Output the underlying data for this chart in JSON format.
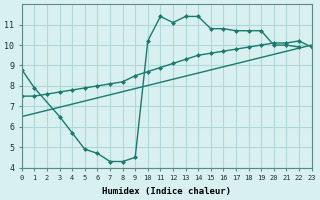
{
  "xlabel": "Humidex (Indice chaleur)",
  "bg_color": "#d9f0f0",
  "grid_color": "#b0d8d8",
  "line_color": "#1a7a6e",
  "xlim": [
    0,
    23
  ],
  "ylim": [
    4,
    12
  ],
  "xticks": [
    0,
    1,
    2,
    3,
    4,
    5,
    6,
    7,
    8,
    9,
    10,
    11,
    12,
    13,
    14,
    15,
    16,
    17,
    18,
    19,
    20,
    21,
    22,
    23
  ],
  "yticks": [
    4,
    5,
    6,
    7,
    8,
    9,
    10,
    11
  ],
  "line1_x": [
    0,
    1,
    3,
    4,
    5,
    6,
    7,
    8,
    9,
    10,
    11,
    12,
    13,
    14,
    15,
    16,
    17,
    18,
    19,
    20,
    21,
    22
  ],
  "line1_y": [
    8.8,
    7.9,
    6.5,
    5.7,
    4.9,
    4.7,
    4.3,
    4.3,
    4.5,
    10.2,
    11.4,
    11.1,
    11.4,
    11.4,
    10.8,
    10.8,
    10.7,
    10.7,
    10.7,
    10.0,
    10.0,
    9.9
  ],
  "line2_x": [
    0,
    1,
    2,
    3,
    4,
    5,
    6,
    7,
    8,
    9,
    10,
    11,
    12,
    13,
    14,
    15,
    16,
    17,
    18,
    19,
    20,
    21,
    22,
    23
  ],
  "line2_y": [
    7.5,
    7.5,
    7.6,
    7.7,
    7.8,
    7.9,
    8.0,
    8.1,
    8.2,
    8.5,
    8.7,
    8.9,
    9.1,
    9.3,
    9.5,
    9.6,
    9.7,
    9.8,
    9.9,
    10.0,
    10.1,
    10.1,
    10.2,
    9.9
  ],
  "line3_x": [
    0,
    23
  ],
  "line3_y": [
    6.5,
    10.0
  ]
}
